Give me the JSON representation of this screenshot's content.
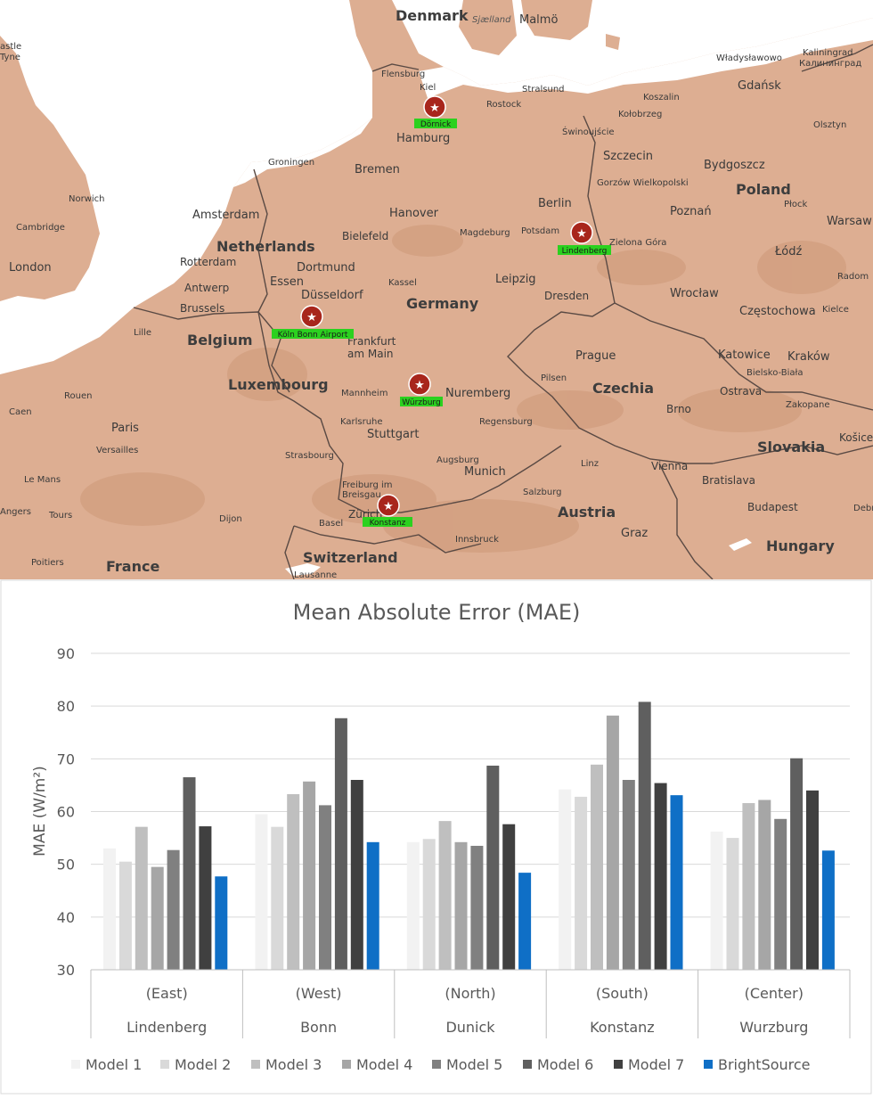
{
  "map": {
    "colors": {
      "sea": "#ffffff",
      "land": "#ddae92",
      "land_dark": "#d29f80",
      "border": "#5a4a44",
      "marker": "#a8261c",
      "tag": "#2bd11f"
    },
    "countries": [
      "Denmark",
      "Netherlands",
      "Belgium",
      "Luxembourg",
      "Germany",
      "Poland",
      "Czechia",
      "Slovakia",
      "Austria",
      "Switzerland",
      "France",
      "Hungary"
    ],
    "cities": [
      "Malmö",
      "Sjælland",
      "Flensburg",
      "Kiel",
      "Stralsund",
      "Rostock",
      "Koszalin",
      "Gdańsk",
      "Władysławowo",
      "Kaliningrad",
      "Калининград",
      "Olsztyn",
      "Kołobrzeg",
      "Świnoujście",
      "Szczecin",
      "Hamburg",
      "Bremen",
      "Groningen",
      "Amsterdam",
      "Rotterdam",
      "Antwerp",
      "Brussels",
      "Lille",
      "London",
      "Cambridge",
      "Norwich",
      "Hanover",
      "Bielefeld",
      "Magdeburg",
      "Potsdam",
      "Berlin",
      "Gorzów Wielkopolski",
      "Poznań",
      "Bydgoszcz",
      "Płock",
      "Warsaw",
      "Łódź",
      "Radom",
      "Zielona Góra",
      "Wrocław",
      "Częstochowa",
      "Kielce",
      "Katowice",
      "Kraków",
      "Bielsko-Biała",
      "Ostrava",
      "Zakopane",
      "Košice",
      "Dortmund",
      "Essen",
      "Düsseldorf",
      "Kassel",
      "Leipzig",
      "Dresden",
      "Prague",
      "Pilsen",
      "Brno",
      "Vienna",
      "Bratislava",
      "Budapest",
      "Debr",
      "Frankfurt",
      "am Main",
      "Mannheim",
      "Nuremberg",
      "Karlsruhe",
      "Stuttgart",
      "Regensburg",
      "Strasbourg",
      "Augsburg",
      "Munich",
      "Linz",
      "Salzburg",
      "Freiburg im",
      "Breisgau",
      "Zürich",
      "Basel",
      "Innsbruck",
      "Graz",
      "Lausanne",
      "Dijon",
      "Paris",
      "Versailles",
      "Rouen",
      "Caen",
      "Le Mans",
      "Tours",
      "Angers",
      "Poitiers",
      "astle",
      "Tyne"
    ],
    "stations": [
      "Dörnick",
      "Lindenberg",
      "Köln Bonn Airport",
      "Würzburg",
      "Konstanz"
    ]
  },
  "chart_data": {
    "type": "bar",
    "title": "Mean Absolute Error (MAE)",
    "ylabel": "MAE (W/m²)",
    "ylim": [
      30,
      90
    ],
    "yticks": [
      30,
      40,
      50,
      60,
      70,
      80,
      90
    ],
    "grid": true,
    "legend_position": "bottom",
    "categories": [
      {
        "region": "(East)",
        "site": "Lindenberg"
      },
      {
        "region": "(West)",
        "site": "Bonn"
      },
      {
        "region": "(North)",
        "site": "Dunick"
      },
      {
        "region": "(South)",
        "site": "Konstanz"
      },
      {
        "region": "(Center)",
        "site": "Wurzburg"
      }
    ],
    "series": [
      {
        "name": "Model 1",
        "color": "#f2f2f2",
        "values": [
          53.0,
          59.5,
          54.2,
          64.2,
          56.2
        ]
      },
      {
        "name": "Model 2",
        "color": "#d9d9d9",
        "values": [
          50.5,
          57.1,
          54.8,
          62.8,
          55.0
        ]
      },
      {
        "name": "Model 3",
        "color": "#bfbfbf",
        "values": [
          57.1,
          63.3,
          58.2,
          68.9,
          61.6
        ]
      },
      {
        "name": "Model 4",
        "color": "#a6a6a6",
        "values": [
          49.5,
          65.7,
          54.2,
          78.2,
          62.2
        ]
      },
      {
        "name": "Model 5",
        "color": "#808080",
        "values": [
          52.7,
          61.2,
          53.5,
          66.0,
          58.6
        ]
      },
      {
        "name": "Model 6",
        "color": "#5f5f5f",
        "values": [
          66.5,
          77.7,
          68.7,
          80.8,
          70.1
        ]
      },
      {
        "name": "Model 7",
        "color": "#404040",
        "values": [
          57.2,
          66.0,
          57.6,
          65.4,
          64.0
        ]
      },
      {
        "name": "BrightSource",
        "color": "#0f6fc6",
        "values": [
          47.7,
          54.2,
          48.4,
          63.1,
          52.6
        ]
      }
    ]
  }
}
